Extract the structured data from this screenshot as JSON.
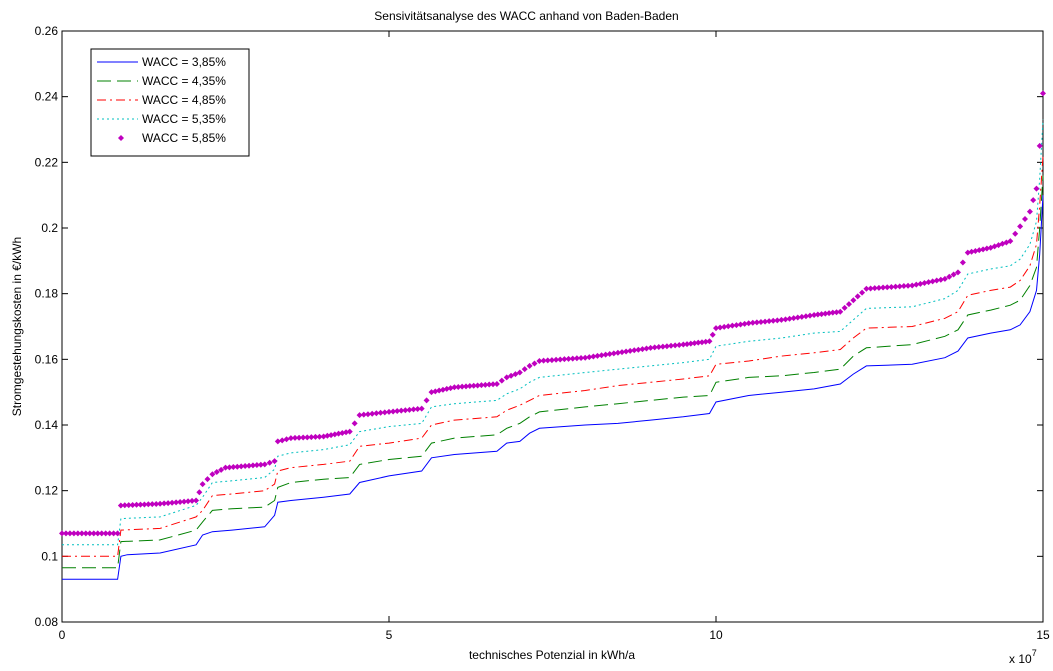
{
  "chart_data": {
    "type": "line",
    "title": "Sensivitätsanalyse des WACC anhand von Baden-Baden",
    "xlabel": "technisches Potenzial in kWh/a",
    "ylabel": "Stromgestehungskosten in €/kWh",
    "x_exponent_label": "x 10",
    "x_exponent_power": "7",
    "xlim": [
      0,
      15
    ],
    "ylim": [
      0.08,
      0.26
    ],
    "x_ticks": [
      0,
      5,
      10,
      15
    ],
    "x_tick_labels": [
      "0",
      "5",
      "10",
      "15"
    ],
    "y_ticks": [
      0.08,
      0.1,
      0.12,
      0.14,
      0.16,
      0.18,
      0.2,
      0.22,
      0.24,
      0.26
    ],
    "y_tick_labels": [
      "0.08",
      "0.1",
      "0.12",
      "0.14",
      "0.16",
      "0.18",
      "0.2",
      "0.22",
      "0.24",
      "0.26"
    ],
    "grid": false,
    "legend_position": "top-left",
    "series": [
      {
        "name": "WACC = 3,85%",
        "color": "#0000ff",
        "style": "solid",
        "points": [
          [
            0,
            0.093
          ],
          [
            0.85,
            0.093
          ],
          [
            0.9,
            0.1
          ],
          [
            1.0,
            0.1005
          ],
          [
            1.5,
            0.101
          ],
          [
            2.05,
            0.1035
          ],
          [
            2.15,
            0.1065
          ],
          [
            2.3,
            0.1075
          ],
          [
            2.6,
            0.108
          ],
          [
            3.1,
            0.109
          ],
          [
            3.25,
            0.1125
          ],
          [
            3.3,
            0.1165
          ],
          [
            3.5,
            0.117
          ],
          [
            4.0,
            0.118
          ],
          [
            4.4,
            0.119
          ],
          [
            4.55,
            0.1225
          ],
          [
            5.0,
            0.1245
          ],
          [
            5.5,
            0.126
          ],
          [
            5.65,
            0.13
          ],
          [
            6.0,
            0.131
          ],
          [
            6.65,
            0.132
          ],
          [
            6.8,
            0.1345
          ],
          [
            7.0,
            0.135
          ],
          [
            7.15,
            0.1375
          ],
          [
            7.3,
            0.139
          ],
          [
            8.0,
            0.14
          ],
          [
            8.5,
            0.1405
          ],
          [
            9.0,
            0.1415
          ],
          [
            9.5,
            0.1425
          ],
          [
            9.9,
            0.1435
          ],
          [
            10.0,
            0.147
          ],
          [
            10.5,
            0.149
          ],
          [
            11.0,
            0.15
          ],
          [
            11.5,
            0.151
          ],
          [
            11.9,
            0.1525
          ],
          [
            12.1,
            0.1555
          ],
          [
            12.3,
            0.158
          ],
          [
            13.0,
            0.1585
          ],
          [
            13.5,
            0.1605
          ],
          [
            13.7,
            0.1625
          ],
          [
            13.85,
            0.1665
          ],
          [
            14.2,
            0.168
          ],
          [
            14.5,
            0.169
          ],
          [
            14.65,
            0.1705
          ],
          [
            14.8,
            0.1745
          ],
          [
            14.9,
            0.181
          ],
          [
            14.95,
            0.192
          ],
          [
            15.0,
            0.21
          ]
        ]
      },
      {
        "name": "WACC = 4,35%",
        "color": "#008000",
        "style": "dashed",
        "points": [
          [
            0,
            0.0965
          ],
          [
            0.85,
            0.0965
          ],
          [
            0.9,
            0.1045
          ],
          [
            1.5,
            0.105
          ],
          [
            2.05,
            0.108
          ],
          [
            2.15,
            0.1105
          ],
          [
            2.3,
            0.114
          ],
          [
            2.6,
            0.1145
          ],
          [
            3.1,
            0.115
          ],
          [
            3.25,
            0.117
          ],
          [
            3.3,
            0.121
          ],
          [
            3.5,
            0.1225
          ],
          [
            4.0,
            0.1235
          ],
          [
            4.4,
            0.124
          ],
          [
            4.55,
            0.128
          ],
          [
            5.0,
            0.1295
          ],
          [
            5.5,
            0.1305
          ],
          [
            5.65,
            0.1345
          ],
          [
            6.0,
            0.136
          ],
          [
            6.65,
            0.137
          ],
          [
            6.8,
            0.139
          ],
          [
            7.0,
            0.1405
          ],
          [
            7.15,
            0.1425
          ],
          [
            7.3,
            0.144
          ],
          [
            8.0,
            0.1455
          ],
          [
            8.5,
            0.1465
          ],
          [
            9.0,
            0.1475
          ],
          [
            9.5,
            0.1485
          ],
          [
            9.9,
            0.149
          ],
          [
            10.0,
            0.153
          ],
          [
            10.5,
            0.1545
          ],
          [
            11.0,
            0.155
          ],
          [
            11.5,
            0.156
          ],
          [
            11.9,
            0.157
          ],
          [
            12.1,
            0.161
          ],
          [
            12.3,
            0.1635
          ],
          [
            13.0,
            0.1645
          ],
          [
            13.5,
            0.167
          ],
          [
            13.7,
            0.169
          ],
          [
            13.85,
            0.1735
          ],
          [
            14.2,
            0.175
          ],
          [
            14.5,
            0.1765
          ],
          [
            14.65,
            0.178
          ],
          [
            14.8,
            0.1825
          ],
          [
            14.9,
            0.188
          ],
          [
            14.95,
            0.2
          ],
          [
            15.0,
            0.216
          ]
        ]
      },
      {
        "name": "WACC = 4,85%",
        "color": "#ff0000",
        "style": "dashdot",
        "points": [
          [
            0,
            0.1
          ],
          [
            0.85,
            0.1
          ],
          [
            0.9,
            0.108
          ],
          [
            1.5,
            0.1085
          ],
          [
            2.05,
            0.112
          ],
          [
            2.15,
            0.114
          ],
          [
            2.3,
            0.1185
          ],
          [
            2.6,
            0.119
          ],
          [
            3.1,
            0.12
          ],
          [
            3.25,
            0.122
          ],
          [
            3.3,
            0.126
          ],
          [
            3.5,
            0.127
          ],
          [
            4.0,
            0.128
          ],
          [
            4.4,
            0.129
          ],
          [
            4.55,
            0.1335
          ],
          [
            5.0,
            0.1345
          ],
          [
            5.5,
            0.136
          ],
          [
            5.65,
            0.14
          ],
          [
            6.0,
            0.1415
          ],
          [
            6.65,
            0.1425
          ],
          [
            6.8,
            0.1445
          ],
          [
            7.0,
            0.146
          ],
          [
            7.15,
            0.1475
          ],
          [
            7.3,
            0.149
          ],
          [
            8.0,
            0.1505
          ],
          [
            8.5,
            0.152
          ],
          [
            9.0,
            0.153
          ],
          [
            9.5,
            0.154
          ],
          [
            9.9,
            0.155
          ],
          [
            10.0,
            0.1585
          ],
          [
            10.5,
            0.1595
          ],
          [
            11.0,
            0.161
          ],
          [
            11.5,
            0.162
          ],
          [
            11.9,
            0.163
          ],
          [
            12.1,
            0.1665
          ],
          [
            12.3,
            0.1695
          ],
          [
            13.0,
            0.17
          ],
          [
            13.5,
            0.1725
          ],
          [
            13.7,
            0.1745
          ],
          [
            13.85,
            0.1795
          ],
          [
            14.2,
            0.181
          ],
          [
            14.5,
            0.182
          ],
          [
            14.65,
            0.184
          ],
          [
            14.8,
            0.1885
          ],
          [
            14.9,
            0.195
          ],
          [
            14.95,
            0.207
          ],
          [
            15.0,
            0.222
          ]
        ]
      },
      {
        "name": "WACC = 5,35%",
        "color": "#00bfbf",
        "style": "dotted",
        "points": [
          [
            0,
            0.1035
          ],
          [
            0.85,
            0.1035
          ],
          [
            0.9,
            0.1115
          ],
          [
            1.5,
            0.112
          ],
          [
            2.05,
            0.1155
          ],
          [
            2.15,
            0.118
          ],
          [
            2.3,
            0.1225
          ],
          [
            2.6,
            0.123
          ],
          [
            3.1,
            0.124
          ],
          [
            3.25,
            0.1265
          ],
          [
            3.3,
            0.1305
          ],
          [
            3.5,
            0.1315
          ],
          [
            4.0,
            0.1325
          ],
          [
            4.4,
            0.134
          ],
          [
            4.55,
            0.138
          ],
          [
            5.0,
            0.1395
          ],
          [
            5.5,
            0.1405
          ],
          [
            5.65,
            0.1455
          ],
          [
            6.0,
            0.1465
          ],
          [
            6.65,
            0.1475
          ],
          [
            6.8,
            0.1495
          ],
          [
            7.0,
            0.151
          ],
          [
            7.15,
            0.153
          ],
          [
            7.3,
            0.1545
          ],
          [
            8.0,
            0.156
          ],
          [
            8.5,
            0.157
          ],
          [
            9.0,
            0.158
          ],
          [
            9.5,
            0.159
          ],
          [
            9.9,
            0.16
          ],
          [
            10.0,
            0.164
          ],
          [
            10.5,
            0.1655
          ],
          [
            11.0,
            0.1665
          ],
          [
            11.5,
            0.168
          ],
          [
            11.9,
            0.1685
          ],
          [
            12.1,
            0.172
          ],
          [
            12.3,
            0.1755
          ],
          [
            13.0,
            0.176
          ],
          [
            13.5,
            0.1785
          ],
          [
            13.7,
            0.181
          ],
          [
            13.85,
            0.186
          ],
          [
            14.2,
            0.1875
          ],
          [
            14.5,
            0.1885
          ],
          [
            14.65,
            0.1905
          ],
          [
            14.8,
            0.195
          ],
          [
            14.9,
            0.202
          ],
          [
            14.95,
            0.215
          ],
          [
            15.0,
            0.233
          ]
        ]
      },
      {
        "name": "WACC = 5,85%",
        "color": "#bf00bf",
        "style": "markers",
        "points": [
          [
            0,
            0.107
          ],
          [
            0.85,
            0.107
          ],
          [
            0.9,
            0.1155
          ],
          [
            1.5,
            0.116
          ],
          [
            2.05,
            0.117
          ],
          [
            2.15,
            0.122
          ],
          [
            2.3,
            0.125
          ],
          [
            2.5,
            0.127
          ],
          [
            3.1,
            0.128
          ],
          [
            3.25,
            0.129
          ],
          [
            3.3,
            0.135
          ],
          [
            3.5,
            0.136
          ],
          [
            4.0,
            0.1365
          ],
          [
            4.4,
            0.138
          ],
          [
            4.55,
            0.143
          ],
          [
            5.0,
            0.144
          ],
          [
            5.5,
            0.145
          ],
          [
            5.65,
            0.15
          ],
          [
            6.0,
            0.1515
          ],
          [
            6.65,
            0.1525
          ],
          [
            6.8,
            0.1545
          ],
          [
            7.0,
            0.156
          ],
          [
            7.15,
            0.158
          ],
          [
            7.3,
            0.1595
          ],
          [
            8.0,
            0.1605
          ],
          [
            8.5,
            0.162
          ],
          [
            9.0,
            0.1635
          ],
          [
            9.5,
            0.1645
          ],
          [
            9.9,
            0.1655
          ],
          [
            10.0,
            0.1695
          ],
          [
            10.5,
            0.171
          ],
          [
            11.0,
            0.172
          ],
          [
            11.5,
            0.1735
          ],
          [
            11.9,
            0.1745
          ],
          [
            12.1,
            0.178
          ],
          [
            12.3,
            0.1815
          ],
          [
            13.0,
            0.1825
          ],
          [
            13.5,
            0.1845
          ],
          [
            13.7,
            0.1865
          ],
          [
            13.85,
            0.1925
          ],
          [
            14.2,
            0.194
          ],
          [
            14.5,
            0.196
          ],
          [
            14.65,
            0.2005
          ],
          [
            14.8,
            0.205
          ],
          [
            14.9,
            0.212
          ],
          [
            14.95,
            0.225
          ],
          [
            15.0,
            0.241
          ]
        ]
      }
    ]
  }
}
